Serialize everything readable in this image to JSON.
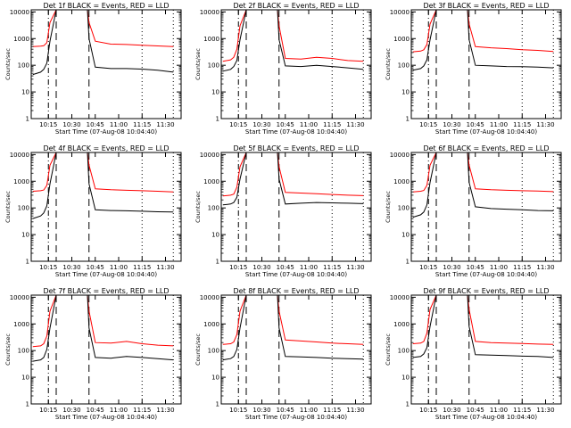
{
  "chart_data": [
    {
      "type": "line",
      "title": "Det 1f BLACK = Events, RED = LLD",
      "ylabel": "Counts/sec",
      "xlabel": "Start Time (07-Aug-08 10:04:40)",
      "x_ticks": [
        "10:15",
        "10:30",
        "10:45",
        "11:00",
        "11:15",
        "11:30"
      ],
      "y_ticks": [
        "1",
        "10",
        "100",
        "1000",
        "10000"
      ],
      "yscale": "log",
      "ylim": [
        1,
        12000
      ],
      "x": [
        "10:05",
        "10:10",
        "10:12",
        "10:14",
        "10:16",
        "10:20",
        "10:25",
        "10:30",
        "10:35",
        "10:40",
        "10:41",
        "10:45",
        "10:55",
        "11:05",
        "11:15",
        "11:25",
        "11:35"
      ],
      "series": [
        {
          "color": "#ff0000",
          "values": [
            500,
            520,
            540,
            700,
            4000,
            12000,
            12000,
            12000,
            12000,
            12000,
            4000,
            800,
            620,
            600,
            560,
            530,
            500
          ]
        },
        {
          "color": "#000000",
          "values": [
            45,
            55,
            70,
            120,
            800,
            12000,
            12000,
            12000,
            12000,
            12000,
            1000,
            85,
            75,
            75,
            72,
            65,
            55
          ]
        }
      ],
      "annotations": [
        {
          "type": "dash-dot",
          "x": "10:15"
        },
        {
          "type": "dashed",
          "x": "10:20"
        },
        {
          "type": "dashed",
          "x": "10:41"
        },
        {
          "type": "dotted",
          "x": "11:15"
        },
        {
          "type": "dotted",
          "x": "11:35"
        }
      ]
    },
    {
      "type": "line",
      "title": "Det 2f BLACK = Events, RED = LLD",
      "ylabel": "Counts/sec",
      "xlabel": "Start Time (07-Aug-08 10:04:40)",
      "x_ticks": [
        "10:15",
        "10:30",
        "10:45",
        "11:00",
        "11:15",
        "11:30"
      ],
      "y_ticks": [
        "1",
        "10",
        "100",
        "1000",
        "10000"
      ],
      "yscale": "log",
      "ylim": [
        1,
        12000
      ],
      "x": [
        "10:05",
        "10:10",
        "10:12",
        "10:14",
        "10:16",
        "10:20",
        "10:25",
        "10:30",
        "10:35",
        "10:40",
        "10:41",
        "10:45",
        "10:55",
        "11:05",
        "11:15",
        "11:25",
        "11:35"
      ],
      "series": [
        {
          "color": "#ff0000",
          "values": [
            140,
            160,
            200,
            400,
            3000,
            12000,
            12000,
            12000,
            12000,
            12000,
            3000,
            180,
            170,
            200,
            180,
            150,
            140
          ]
        },
        {
          "color": "#000000",
          "values": [
            60,
            70,
            90,
            150,
            900,
            12000,
            12000,
            12000,
            12000,
            12000,
            900,
            95,
            90,
            100,
            90,
            80,
            70
          ]
        }
      ],
      "annotations": [
        {
          "type": "dash-dot",
          "x": "10:15"
        },
        {
          "type": "dashed",
          "x": "10:20"
        },
        {
          "type": "dashed",
          "x": "10:41"
        },
        {
          "type": "dotted",
          "x": "11:15"
        },
        {
          "type": "dotted",
          "x": "11:35"
        }
      ]
    },
    {
      "type": "line",
      "title": "Det 3f BLACK = Events, RED = LLD",
      "ylabel": "Counts/sec",
      "xlabel": "Start Time (07-Aug-08 10:04:40)",
      "x_ticks": [
        "10:15",
        "10:30",
        "10:45",
        "11:00",
        "11:15",
        "11:30"
      ],
      "y_ticks": [
        "1",
        "10",
        "100",
        "1000",
        "10000"
      ],
      "yscale": "log",
      "ylim": [
        1,
        12000
      ],
      "x": [
        "10:05",
        "10:10",
        "10:12",
        "10:14",
        "10:16",
        "10:20",
        "10:25",
        "10:30",
        "10:35",
        "10:40",
        "10:41",
        "10:45",
        "10:55",
        "11:05",
        "11:15",
        "11:25",
        "11:35"
      ],
      "series": [
        {
          "color": "#ff0000",
          "values": [
            320,
            340,
            380,
            600,
            3500,
            12000,
            12000,
            12000,
            12000,
            12000,
            3500,
            500,
            450,
            420,
            380,
            360,
            330
          ]
        },
        {
          "color": "#000000",
          "values": [
            65,
            75,
            95,
            160,
            900,
            12000,
            12000,
            12000,
            12000,
            12000,
            900,
            100,
            95,
            90,
            88,
            85,
            80
          ]
        }
      ],
      "annotations": [
        {
          "type": "dash-dot",
          "x": "10:15"
        },
        {
          "type": "dashed",
          "x": "10:20"
        },
        {
          "type": "dashed",
          "x": "10:41"
        },
        {
          "type": "dotted",
          "x": "11:15"
        },
        {
          "type": "dotted",
          "x": "11:35"
        }
      ]
    },
    {
      "type": "line",
      "title": "Det 4f BLACK = Events, RED = LLD",
      "ylabel": "Counts/sec",
      "xlabel": "Start Time (07-Aug-08 10:04:40)",
      "x_ticks": [
        "10:15",
        "10:30",
        "10:45",
        "11:00",
        "11:15",
        "11:30"
      ],
      "y_ticks": [
        "1",
        "10",
        "100",
        "1000",
        "10000"
      ],
      "yscale": "log",
      "ylim": [
        1,
        12000
      ],
      "x": [
        "10:05",
        "10:10",
        "10:12",
        "10:14",
        "10:16",
        "10:20",
        "10:25",
        "10:30",
        "10:35",
        "10:40",
        "10:41",
        "10:45",
        "10:55",
        "11:05",
        "11:15",
        "11:25",
        "11:35"
      ],
      "series": [
        {
          "color": "#ff0000",
          "values": [
            420,
            440,
            470,
            700,
            4000,
            12000,
            12000,
            12000,
            12000,
            12000,
            4000,
            520,
            480,
            460,
            440,
            420,
            400
          ]
        },
        {
          "color": "#000000",
          "values": [
            40,
            50,
            65,
            120,
            800,
            12000,
            12000,
            12000,
            12000,
            12000,
            800,
            85,
            80,
            78,
            75,
            72,
            70
          ]
        }
      ],
      "annotations": [
        {
          "type": "dash-dot",
          "x": "10:15"
        },
        {
          "type": "dashed",
          "x": "10:20"
        },
        {
          "type": "dashed",
          "x": "10:41"
        },
        {
          "type": "dotted",
          "x": "11:15"
        },
        {
          "type": "dotted",
          "x": "11:35"
        }
      ]
    },
    {
      "type": "line",
      "title": "Det 5f BLACK = Events, RED = LLD",
      "ylabel": "Counts/sec",
      "xlabel": "Start Time (07-Aug-08 10:04:40)",
      "x_ticks": [
        "10:15",
        "10:30",
        "10:45",
        "11:00",
        "11:15",
        "11:30"
      ],
      "y_ticks": [
        "1",
        "10",
        "100",
        "1000",
        "10000"
      ],
      "yscale": "log",
      "ylim": [
        1,
        12000
      ],
      "x": [
        "10:05",
        "10:10",
        "10:12",
        "10:14",
        "10:16",
        "10:20",
        "10:25",
        "10:30",
        "10:35",
        "10:40",
        "10:41",
        "10:45",
        "10:55",
        "11:05",
        "11:15",
        "11:25",
        "11:35"
      ],
      "series": [
        {
          "color": "#ff0000",
          "values": [
            280,
            300,
            330,
            600,
            3500,
            12000,
            12000,
            12000,
            12000,
            12000,
            3500,
            380,
            360,
            340,
            320,
            300,
            290
          ]
        },
        {
          "color": "#000000",
          "values": [
            130,
            140,
            160,
            250,
            1200,
            12000,
            12000,
            12000,
            12000,
            12000,
            1200,
            140,
            150,
            160,
            155,
            150,
            145
          ]
        }
      ],
      "annotations": [
        {
          "type": "dash-dot",
          "x": "10:15"
        },
        {
          "type": "dashed",
          "x": "10:20"
        },
        {
          "type": "dashed",
          "x": "10:41"
        },
        {
          "type": "dotted",
          "x": "11:15"
        },
        {
          "type": "dotted",
          "x": "11:35"
        }
      ]
    },
    {
      "type": "line",
      "title": "Det 6f BLACK = Events, RED = LLD",
      "ylabel": "Counts/sec",
      "xlabel": "Start Time (07-Aug-08 10:04:40)",
      "x_ticks": [
        "10:15",
        "10:30",
        "10:45",
        "11:00",
        "11:15",
        "11:30"
      ],
      "y_ticks": [
        "1",
        "10",
        "100",
        "1000",
        "10000"
      ],
      "yscale": "log",
      "ylim": [
        1,
        12000
      ],
      "x": [
        "10:05",
        "10:10",
        "10:12",
        "10:14",
        "10:16",
        "10:20",
        "10:25",
        "10:30",
        "10:35",
        "10:40",
        "10:41",
        "10:45",
        "10:55",
        "11:05",
        "11:15",
        "11:25",
        "11:35"
      ],
      "series": [
        {
          "color": "#ff0000",
          "values": [
            400,
            420,
            450,
            700,
            4000,
            12000,
            12000,
            12000,
            12000,
            12000,
            4000,
            520,
            480,
            460,
            440,
            430,
            410
          ]
        },
        {
          "color": "#000000",
          "values": [
            45,
            55,
            70,
            130,
            900,
            12000,
            12000,
            12000,
            12000,
            12000,
            900,
            110,
            95,
            90,
            85,
            80,
            78
          ]
        }
      ],
      "annotations": [
        {
          "type": "dash-dot",
          "x": "10:15"
        },
        {
          "type": "dashed",
          "x": "10:20"
        },
        {
          "type": "dashed",
          "x": "10:41"
        },
        {
          "type": "dotted",
          "x": "11:15"
        },
        {
          "type": "dotted",
          "x": "11:35"
        }
      ]
    },
    {
      "type": "line",
      "title": "Det 7f BLACK = Events, RED = LLD",
      "ylabel": "Counts/sec",
      "xlabel": "Start Time (07-Aug-08 10:04:40)",
      "x_ticks": [
        "10:15",
        "10:30",
        "10:45",
        "11:00",
        "11:15",
        "11:30"
      ],
      "y_ticks": [
        "1",
        "10",
        "100",
        "1000",
        "10000"
      ],
      "yscale": "log",
      "ylim": [
        1,
        12000
      ],
      "x": [
        "10:05",
        "10:10",
        "10:12",
        "10:14",
        "10:16",
        "10:20",
        "10:25",
        "10:30",
        "10:35",
        "10:40",
        "10:41",
        "10:45",
        "10:55",
        "11:05",
        "11:15",
        "11:25",
        "11:35"
      ],
      "series": [
        {
          "color": "#ff0000",
          "values": [
            140,
            150,
            180,
            350,
            3000,
            12000,
            12000,
            12000,
            12000,
            12000,
            3000,
            200,
            190,
            220,
            180,
            160,
            150
          ]
        },
        {
          "color": "#000000",
          "values": [
            40,
            45,
            55,
            110,
            700,
            12000,
            12000,
            12000,
            12000,
            12000,
            700,
            55,
            52,
            60,
            55,
            50,
            45
          ]
        }
      ],
      "annotations": [
        {
          "type": "dash-dot",
          "x": "10:15"
        },
        {
          "type": "dashed",
          "x": "10:20"
        },
        {
          "type": "dashed",
          "x": "10:41"
        },
        {
          "type": "dotted",
          "x": "11:15"
        },
        {
          "type": "dotted",
          "x": "11:35"
        }
      ]
    },
    {
      "type": "line",
      "title": "Det 8f BLACK = Events, RED = LLD",
      "ylabel": "Counts/sec",
      "xlabel": "Start Time (07-Aug-08 10:04:40)",
      "x_ticks": [
        "10:15",
        "10:30",
        "10:45",
        "11:00",
        "11:15",
        "11:30"
      ],
      "y_ticks": [
        "1",
        "10",
        "100",
        "1000",
        "10000"
      ],
      "yscale": "log",
      "ylim": [
        1,
        12000
      ],
      "x": [
        "10:05",
        "10:10",
        "10:12",
        "10:14",
        "10:16",
        "10:20",
        "10:25",
        "10:30",
        "10:35",
        "10:40",
        "10:41",
        "10:45",
        "10:55",
        "11:05",
        "11:15",
        "11:25",
        "11:35"
      ],
      "series": [
        {
          "color": "#ff0000",
          "values": [
            170,
            180,
            210,
            400,
            3000,
            12000,
            12000,
            12000,
            12000,
            12000,
            3000,
            250,
            230,
            210,
            190,
            180,
            170
          ]
        },
        {
          "color": "#000000",
          "values": [
            45,
            50,
            60,
            110,
            700,
            12000,
            12000,
            12000,
            12000,
            12000,
            700,
            60,
            58,
            55,
            52,
            50,
            48
          ]
        }
      ],
      "annotations": [
        {
          "type": "dash-dot",
          "x": "10:15"
        },
        {
          "type": "dashed",
          "x": "10:20"
        },
        {
          "type": "dashed",
          "x": "10:41"
        },
        {
          "type": "dotted",
          "x": "11:15"
        },
        {
          "type": "dotted",
          "x": "11:35"
        }
      ]
    },
    {
      "type": "line",
      "title": "Det 9f BLACK = Events, RED = LLD",
      "ylabel": "Counts/sec",
      "xlabel": "Start Time (07-Aug-08 10:04:40)",
      "x_ticks": [
        "10:15",
        "10:30",
        "10:45",
        "11:00",
        "11:15",
        "11:30"
      ],
      "y_ticks": [
        "1",
        "10",
        "100",
        "1000",
        "10000"
      ],
      "yscale": "log",
      "ylim": [
        1,
        12000
      ],
      "x": [
        "10:05",
        "10:10",
        "10:12",
        "10:14",
        "10:16",
        "10:20",
        "10:25",
        "10:30",
        "10:35",
        "10:40",
        "10:41",
        "10:45",
        "10:55",
        "11:05",
        "11:15",
        "11:25",
        "11:35"
      ],
      "series": [
        {
          "color": "#ff0000",
          "values": [
            180,
            190,
            220,
            450,
            3500,
            12000,
            12000,
            12000,
            12000,
            12000,
            3500,
            220,
            200,
            190,
            185,
            175,
            170
          ]
        },
        {
          "color": "#000000",
          "values": [
            55,
            60,
            75,
            130,
            800,
            12000,
            12000,
            12000,
            12000,
            12000,
            800,
            70,
            68,
            65,
            62,
            60,
            55
          ]
        }
      ],
      "annotations": [
        {
          "type": "dash-dot",
          "x": "10:15"
        },
        {
          "type": "dashed",
          "x": "10:20"
        },
        {
          "type": "dashed",
          "x": "10:41"
        },
        {
          "type": "dotted",
          "x": "11:15"
        },
        {
          "type": "dotted",
          "x": "11:35"
        }
      ]
    }
  ]
}
